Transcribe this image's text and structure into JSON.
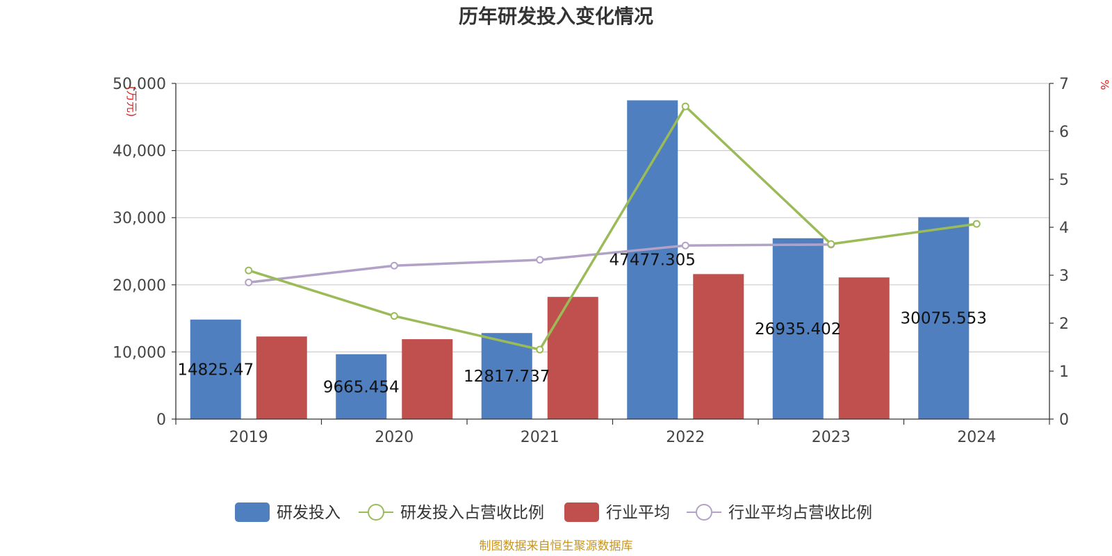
{
  "chart_data": {
    "type": "bar",
    "title": "历年研发投入变化情况",
    "categories": [
      "2019",
      "2020",
      "2021",
      "2022",
      "2023",
      "2024"
    ],
    "bar_series": [
      {
        "name": "研发投入",
        "color": "#4f7fbf",
        "values": [
          14825.47,
          9665.454,
          12817.737,
          47477.305,
          26935.402,
          30075.553
        ],
        "data_labels": [
          "14825.47",
          "9665.454",
          "12817.737",
          "47477.305",
          "26935.402",
          "30075.553"
        ]
      },
      {
        "name": "行业平均",
        "color": "#c0504d",
        "values": [
          12300,
          11900,
          18200,
          21600,
          21100,
          null
        ]
      }
    ],
    "line_series": [
      {
        "name": "研发投入占营收比例",
        "color": "#9bbb59",
        "values": [
          3.1,
          2.15,
          1.45,
          6.52,
          3.65,
          4.07
        ]
      },
      {
        "name": "行业平均占营收比例",
        "color": "#b3a2c7",
        "values": [
          2.85,
          3.2,
          3.32,
          3.62,
          3.64,
          null
        ]
      }
    ],
    "y_left": {
      "min": 0,
      "max": 50000,
      "ticks": [
        0,
        10000,
        20000,
        30000,
        40000,
        50000
      ],
      "tick_labels": [
        "0",
        "10,000",
        "20,000",
        "30,000",
        "40,000",
        "50,000"
      ],
      "unit_label": "(万元)"
    },
    "y_right": {
      "min": 0,
      "max": 7,
      "ticks": [
        0,
        1,
        2,
        3,
        4,
        5,
        6,
        7
      ],
      "tick_labels": [
        "0",
        "1",
        "2",
        "3",
        "4",
        "5",
        "6",
        "7"
      ],
      "unit_label": "%"
    },
    "grid": true,
    "legend_position": "bottom"
  },
  "source_text": "制图数据来自恒生聚源数据库",
  "colors": {
    "unit_label": "#e02020",
    "source": "#c8961e",
    "grid": "#cccccc",
    "axis": "#333333"
  }
}
